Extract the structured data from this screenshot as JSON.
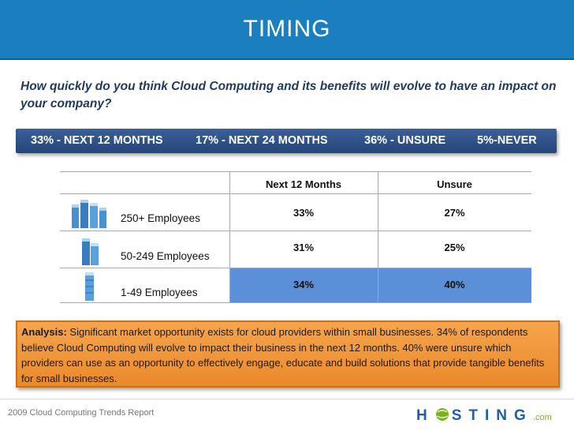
{
  "title": "TIMING",
  "question": "How quickly do you think Cloud Computing and its benefits will evolve to have an impact on your company?",
  "stats": [
    "33% - NEXT 12 MONTHS",
    "17% - NEXT 24 MONTHS",
    "36% - UNSURE",
    "5%-NEVER"
  ],
  "table": {
    "headers": [
      "Next 12 Months",
      "Unsure"
    ],
    "rows": [
      {
        "label": "250+ Employees",
        "next12": "33%",
        "unsure": "27%"
      },
      {
        "label": "50-249 Employees",
        "next12": "31%",
        "unsure": "25%"
      },
      {
        "label": "1-49 Employees",
        "next12": "34%",
        "unsure": "40%"
      }
    ]
  },
  "analysis": {
    "label": "Analysis:",
    "text": " Significant market opportunity exists for cloud providers within small businesses.  34%  of respondents believe Cloud Computing will evolve to impact their business in the next 12 months.  40% were unsure which providers can use as an opportunity to effectively engage, educate and build solutions that provide tangible benefits for small businesses."
  },
  "footer": "2009 Cloud Computing Trends Report",
  "logo": {
    "main": "H STING",
    "suffix": ".com"
  },
  "colors": {
    "header": "#1b7fbf",
    "stats_bar": "#2b4d85",
    "analysis": "#f39a3e",
    "highlight": "#5b8fd8",
    "logo_blue": "#1f5fa8",
    "logo_green": "#7bb31a"
  }
}
